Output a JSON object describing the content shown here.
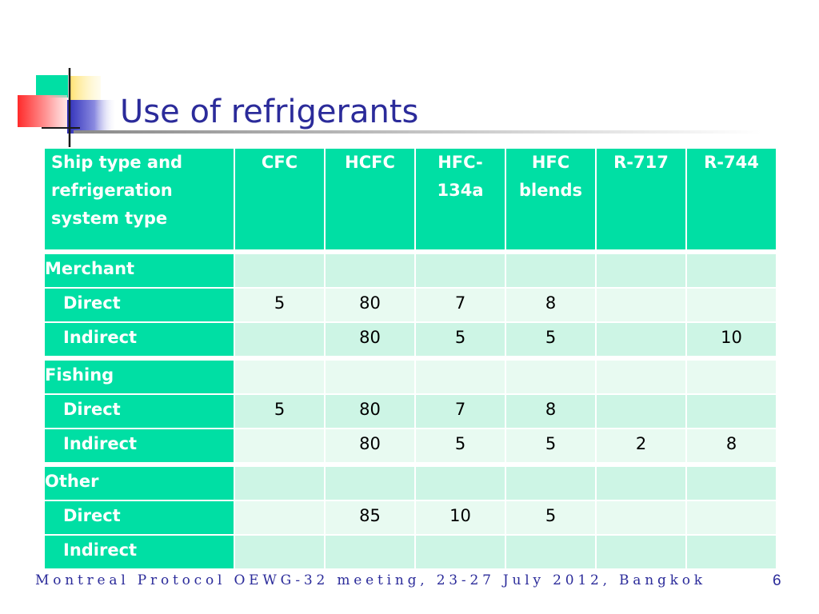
{
  "slide": {
    "title": "Use of refrigerants",
    "footer": "Montreal Protocol OEWG-32 meeting, 23-27 July 2012, Bangkok",
    "page_number": "6"
  },
  "table": {
    "header": {
      "label_lines": [
        "Ship type and",
        "refrigeration",
        "system type"
      ],
      "columns": [
        {
          "lines": [
            "CFC"
          ]
        },
        {
          "lines": [
            "HCFC"
          ]
        },
        {
          "lines": [
            "HFC-",
            "134a"
          ]
        },
        {
          "lines": [
            "HFC",
            "blends"
          ]
        },
        {
          "lines": [
            "R-717"
          ]
        },
        {
          "lines": [
            "R-744"
          ]
        }
      ]
    },
    "rows": [
      {
        "label": "Merchant",
        "type": "category",
        "values": [
          "",
          "",
          "",
          "",
          "",
          ""
        ]
      },
      {
        "label": "Direct",
        "type": "sub",
        "values": [
          "5",
          "80",
          "7",
          "8",
          "",
          ""
        ]
      },
      {
        "label": "Indirect",
        "type": "sub",
        "values": [
          "",
          "80",
          "5",
          "5",
          "",
          "10"
        ]
      },
      {
        "label": "Fishing",
        "type": "category",
        "values": [
          "",
          "",
          "",
          "",
          "",
          ""
        ]
      },
      {
        "label": "Direct",
        "type": "sub",
        "values": [
          "5",
          "80",
          "7",
          "8",
          "",
          ""
        ]
      },
      {
        "label": "Indirect",
        "type": "sub",
        "values": [
          "",
          "80",
          "5",
          "5",
          "2",
          "8"
        ]
      },
      {
        "label": "Other",
        "type": "category",
        "values": [
          "",
          "",
          "",
          "",
          "",
          ""
        ]
      },
      {
        "label": "Direct",
        "type": "sub",
        "values": [
          "",
          "85",
          "10",
          "5",
          "",
          ""
        ]
      },
      {
        "label": "Indirect",
        "type": "sub",
        "values": [
          "",
          "",
          "",
          "",
          "",
          ""
        ]
      }
    ]
  },
  "colors": {
    "header_bg": "#00dfa4",
    "row_odd": "#cdf5e5",
    "row_even": "#e8faf1",
    "title": "#2b2b9a"
  }
}
